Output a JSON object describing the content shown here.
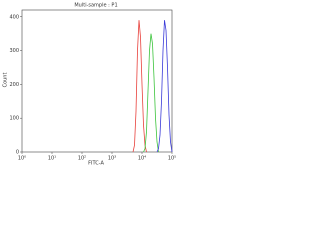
{
  "chart_data": {
    "type": "line",
    "title": "Multi-sample : P1",
    "x_label": "FITC-A",
    "y_label": "Count",
    "xscale": "log",
    "xlim": [
      1,
      100000
    ],
    "xticks": [
      {
        "value": 1,
        "label": "10⁰"
      },
      {
        "value": 10,
        "label": "10¹"
      },
      {
        "value": 100,
        "label": "10²"
      },
      {
        "value": 1000,
        "label": "10³"
      },
      {
        "value": 10000,
        "label": "10⁴"
      },
      {
        "value": 100000,
        "label": "10⁵"
      }
    ],
    "ylim": [
      0,
      420
    ],
    "yticks": [
      0,
      100,
      200,
      300,
      400
    ],
    "series": [
      {
        "color": "#e8413c",
        "x": [
          5012,
          5623,
          6310,
          7079,
          7943,
          8913,
          10000,
          11220,
          12589,
          14125
        ],
        "values": [
          0,
          20,
          120,
          300,
          390,
          340,
          200,
          80,
          20,
          0
        ]
      },
      {
        "color": "#3cc43c",
        "x": [
          11220,
          12589,
          14125,
          15849,
          17783,
          19953,
          22387,
          25119,
          28184,
          31623,
          35481
        ],
        "values": [
          0,
          10,
          60,
          180,
          300,
          350,
          320,
          220,
          100,
          30,
          0
        ]
      },
      {
        "color": "#3a3ad8",
        "x": [
          31623,
          35481,
          39811,
          44668,
          50119,
          56234,
          63096,
          70795,
          79433,
          89125,
          100000
        ],
        "values": [
          0,
          10,
          50,
          150,
          300,
          390,
          360,
          250,
          110,
          30,
          0
        ]
      }
    ]
  }
}
